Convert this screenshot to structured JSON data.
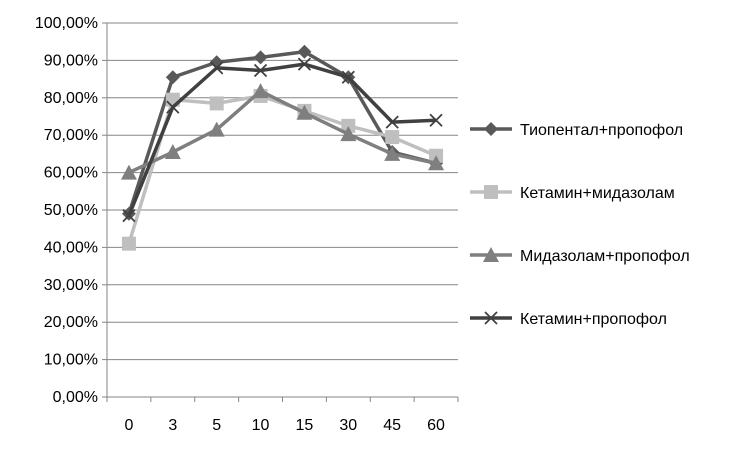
{
  "chart_data": {
    "type": "line",
    "title": "",
    "xlabel": "",
    "ylabel": "",
    "categories": [
      "0",
      "3",
      "5",
      "10",
      "15",
      "30",
      "45",
      "60"
    ],
    "ylim": [
      0,
      100
    ],
    "y_tick_step": 10,
    "y_tick_labels": [
      "0,00%",
      "10,00%",
      "20,00%",
      "30,00%",
      "40,00%",
      "50,00%",
      "60,00%",
      "70,00%",
      "80,00%",
      "90,00%",
      "100,00%"
    ],
    "grid": "horizontal",
    "legend_position": "right",
    "series": [
      {
        "name": "Тиопентал+пропофол",
        "marker": "diamond",
        "color": "#595959",
        "values": [
          49,
          85.5,
          89.5,
          90.8,
          92.3,
          85.5,
          65.5,
          62.5
        ]
      },
      {
        "name": "Кетамин+мидазолам",
        "marker": "square",
        "color": "#bfbfbf",
        "values": [
          41,
          79.5,
          78.5,
          80.5,
          76.5,
          72.5,
          69.5,
          64.5
        ]
      },
      {
        "name": "Мидазолам+пропофол",
        "marker": "triangle",
        "color": "#7f7f7f",
        "values": [
          60,
          65.5,
          71.5,
          81.8,
          76,
          70.3,
          65,
          62.5
        ]
      },
      {
        "name": "Кетамин+пропофол",
        "marker": "x",
        "color": "#404040",
        "values": [
          48.5,
          77.5,
          88,
          87.3,
          89,
          85.5,
          73.5,
          74
        ]
      }
    ]
  }
}
